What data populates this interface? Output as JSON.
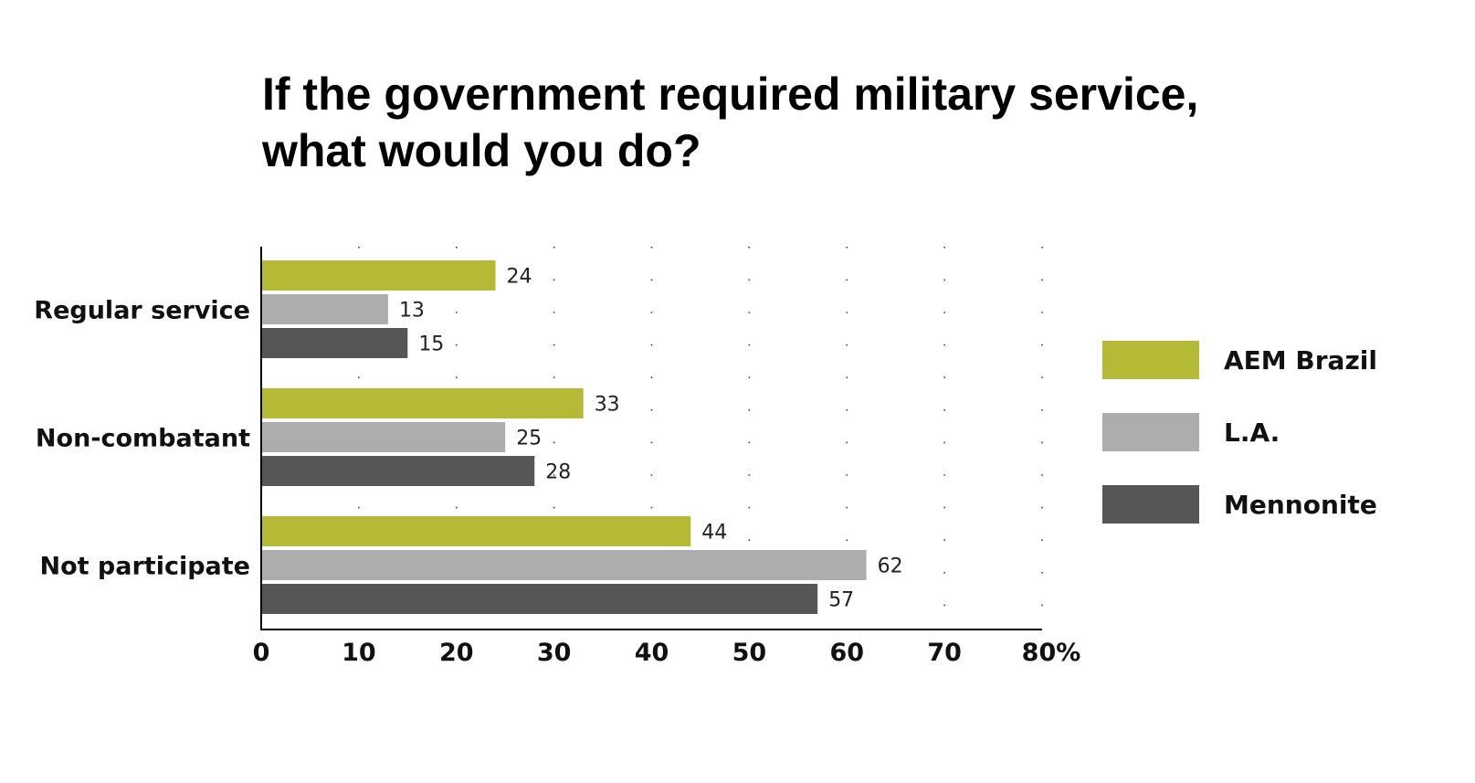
{
  "chart_data": {
    "type": "bar",
    "orientation": "horizontal",
    "title_lines": [
      "If the government required military service,",
      "what would you do?"
    ],
    "categories": [
      "Regular service",
      "Non-combatant",
      "Not participate"
    ],
    "series": [
      {
        "name": "AEM Brazil",
        "color": "#b5ba36",
        "values": [
          24,
          33,
          44
        ]
      },
      {
        "name": "L.A.",
        "color": "#adadad",
        "values": [
          13,
          25,
          62
        ]
      },
      {
        "name": "Mennonite",
        "color": "#565656",
        "values": [
          15,
          28,
          57
        ]
      }
    ],
    "xlim": [
      0,
      80
    ],
    "xticks": [
      "0",
      "10",
      "20",
      "30",
      "40",
      "50",
      "60",
      "70",
      "80%"
    ],
    "grid": "vertical dotted",
    "legend": "right"
  }
}
